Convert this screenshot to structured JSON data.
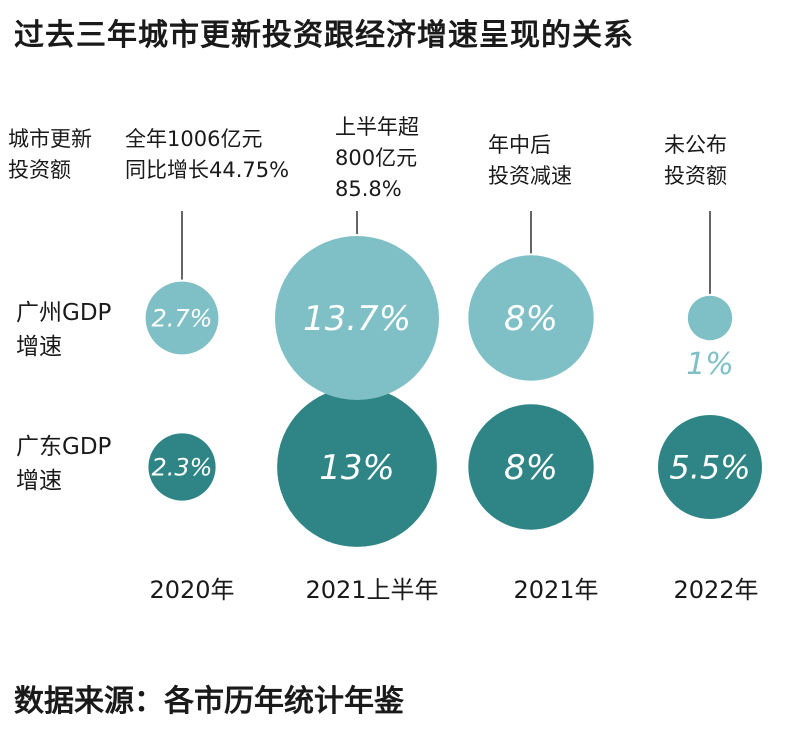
{
  "title": "过去三年城市更新投资跟经济增速呈现的关系",
  "source": "数据来源：各市历年统计年鉴",
  "investment_header": [
    "城市更新",
    "投资额"
  ],
  "row_labels": [
    [
      "广州GDP",
      "增速"
    ],
    [
      "广东GDP",
      "增速"
    ]
  ],
  "colors": {
    "guangzhou": "#7fbfc6",
    "guangdong": "#2f8585",
    "label_on_bubble": "#ffffff",
    "guangzhou_text": "#7fbfc6",
    "guangdong_text": "#2f8585"
  },
  "chart_data": {
    "type": "bubble",
    "categories": [
      "2020年",
      "2021上半年",
      "2021年",
      "2022年"
    ],
    "investment_annotations": [
      [
        "全年1006亿元",
        "同比增长44.75%"
      ],
      [
        "上半年超",
        "800亿元",
        "85.8%"
      ],
      [
        "年中后",
        "投资减速"
      ],
      [
        "未公布",
        "投资额"
      ]
    ],
    "series": [
      {
        "name": "广州GDP增速",
        "values": [
          2.7,
          13.7,
          8,
          1
        ],
        "labels": [
          "2.7%",
          "13.7%",
          "8%",
          "1%"
        ]
      },
      {
        "name": "广东GDP增速",
        "values": [
          2.3,
          13,
          8,
          5.5
        ],
        "labels": [
          "2.3%",
          "13%",
          "8%",
          "5.5%"
        ]
      }
    ]
  }
}
